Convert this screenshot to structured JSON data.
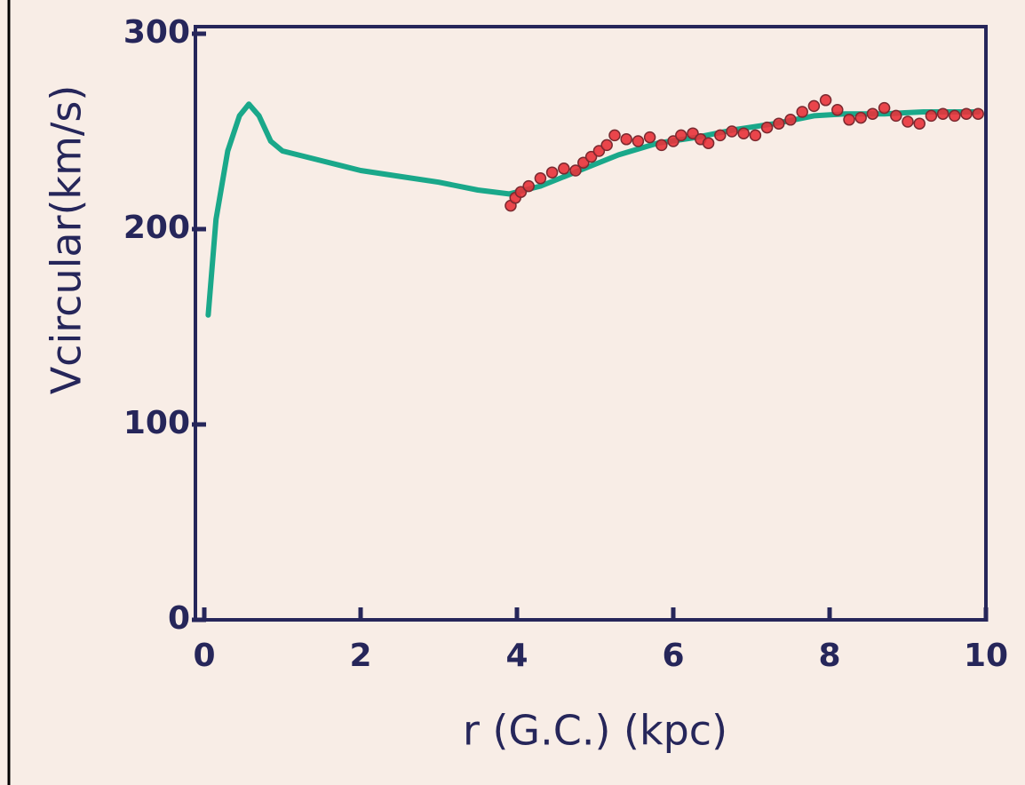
{
  "chart_data": {
    "type": "line",
    "x_label": "r (G.C.) (kpc)",
    "y_label": "Vcircular(km/s)",
    "xlim": [
      0,
      10
    ],
    "xticks": [
      0,
      2,
      4,
      6,
      8,
      10
    ],
    "ylim": [
      0,
      300
    ],
    "yticks": [
      0,
      100,
      200,
      300
    ],
    "grid": false,
    "series": [
      {
        "mode": "line",
        "color": "#1aa88a",
        "x": [
          0.05,
          0.15,
          0.3,
          0.45,
          0.57,
          0.7,
          0.85,
          1.0,
          1.5,
          2,
          2.5,
          3,
          3.5,
          3.9,
          4.3,
          4.8,
          5.3,
          5.8,
          6.3,
          6.8,
          7.3,
          7.8,
          8.2,
          8.7,
          9.2,
          9.9
        ],
        "values": [
          156,
          205,
          240,
          258,
          264,
          258,
          245,
          240,
          235,
          230,
          227,
          224,
          220,
          218,
          222,
          230,
          238,
          244,
          247,
          251,
          254,
          258,
          259,
          259,
          260,
          260
        ]
      },
      {
        "mode": "markers",
        "color": "#e8323a",
        "x": [
          3.92,
          3.98,
          4.05,
          4.15,
          4.3,
          4.45,
          4.6,
          4.75,
          4.85,
          4.95,
          5.05,
          5.15,
          5.25,
          5.4,
          5.55,
          5.7,
          5.85,
          6.0,
          6.1,
          6.25,
          6.35,
          6.45,
          6.6,
          6.75,
          6.9,
          7.05,
          7.2,
          7.35,
          7.5,
          7.65,
          7.8,
          7.95,
          8.1,
          8.25,
          8.4,
          8.55,
          8.7,
          8.85,
          9.0,
          9.15,
          9.3,
          9.45,
          9.6,
          9.75,
          9.9
        ],
        "values": [
          212,
          216,
          219,
          222,
          226,
          229,
          231,
          230,
          234,
          237,
          240,
          243,
          248,
          246,
          245,
          247,
          243,
          245,
          248,
          249,
          246,
          244,
          248,
          250,
          249,
          248,
          252,
          254,
          256,
          260,
          263,
          266,
          261,
          256,
          257,
          259,
          262,
          258,
          255,
          254,
          258,
          259,
          258,
          259,
          259
        ]
      }
    ]
  }
}
